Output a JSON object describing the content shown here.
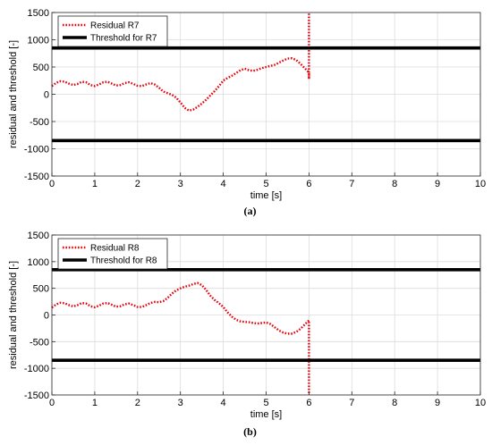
{
  "chart_data": [
    {
      "type": "line",
      "caption": "(a)",
      "xlabel": "time [s]",
      "ylabel": "residual and threshold [-]",
      "xlim": [
        0,
        10
      ],
      "ylim": [
        -1500,
        1500
      ],
      "xticks": [
        "0",
        "1",
        "2",
        "3",
        "4",
        "5",
        "6",
        "7",
        "8",
        "9",
        "10"
      ],
      "yticks": [
        "-1500",
        "-1000",
        "-500",
        "0",
        "500",
        "1000",
        "1500"
      ],
      "grid": true,
      "legend_position": "top-left",
      "series": [
        {
          "name": "Residual R7",
          "style": "dotted",
          "color": "#e8000b",
          "points": [
            [
              0,
              150
            ],
            [
              0.1,
              210
            ],
            [
              0.2,
              240
            ],
            [
              0.3,
              230
            ],
            [
              0.4,
              195
            ],
            [
              0.5,
              170
            ],
            [
              0.6,
              190
            ],
            [
              0.7,
              230
            ],
            [
              0.8,
              220
            ],
            [
              0.9,
              170
            ],
            [
              1.0,
              150
            ],
            [
              1.1,
              180
            ],
            [
              1.2,
              220
            ],
            [
              1.3,
              230
            ],
            [
              1.4,
              195
            ],
            [
              1.5,
              160
            ],
            [
              1.6,
              170
            ],
            [
              1.7,
              205
            ],
            [
              1.8,
              220
            ],
            [
              1.9,
              190
            ],
            [
              2.0,
              155
            ],
            [
              2.1,
              150
            ],
            [
              2.2,
              180
            ],
            [
              2.3,
              205
            ],
            [
              2.4,
              180
            ],
            [
              2.5,
              120
            ],
            [
              2.6,
              50
            ],
            [
              2.7,
              20
            ],
            [
              2.8,
              -10
            ],
            [
              2.9,
              -60
            ],
            [
              3.0,
              -150
            ],
            [
              3.1,
              -250
            ],
            [
              3.2,
              -300
            ],
            [
              3.3,
              -280
            ],
            [
              3.4,
              -230
            ],
            [
              3.5,
              -170
            ],
            [
              3.6,
              -100
            ],
            [
              3.7,
              -20
            ],
            [
              3.8,
              60
            ],
            [
              3.9,
              150
            ],
            [
              4.0,
              250
            ],
            [
              4.1,
              300
            ],
            [
              4.2,
              340
            ],
            [
              4.3,
              390
            ],
            [
              4.4,
              440
            ],
            [
              4.5,
              470
            ],
            [
              4.6,
              440
            ],
            [
              4.7,
              430
            ],
            [
              4.8,
              450
            ],
            [
              4.9,
              480
            ],
            [
              5.0,
              500
            ],
            [
              5.1,
              520
            ],
            [
              5.2,
              540
            ],
            [
              5.3,
              580
            ],
            [
              5.4,
              620
            ],
            [
              5.5,
              655
            ],
            [
              5.6,
              660
            ],
            [
              5.7,
              630
            ],
            [
              5.8,
              560
            ],
            [
              5.9,
              480
            ],
            [
              6.0,
              400
            ],
            [
              6.0,
              280
            ],
            [
              6.0,
              1500
            ]
          ]
        },
        {
          "name": "Threshold for R7",
          "style": "solid-thick",
          "color": "#000000",
          "points": [
            [
              0,
              850
            ],
            [
              10,
              850
            ]
          ]
        },
        {
          "name": "",
          "style": "solid-thick",
          "color": "#000000",
          "points": [
            [
              0,
              -850
            ],
            [
              10,
              -850
            ]
          ]
        }
      ]
    },
    {
      "type": "line",
      "caption": "(b)",
      "xlabel": "time [s]",
      "ylabel": "residual and threshold [-]",
      "xlim": [
        0,
        10
      ],
      "ylim": [
        -1500,
        1500
      ],
      "xticks": [
        "0",
        "1",
        "2",
        "3",
        "4",
        "5",
        "6",
        "7",
        "8",
        "9",
        "10"
      ],
      "yticks": [
        "-1500",
        "-1000",
        "-500",
        "0",
        "500",
        "1000",
        "1500"
      ],
      "grid": true,
      "legend_position": "top-left",
      "series": [
        {
          "name": "Residual R8",
          "style": "dotted",
          "color": "#e8000b",
          "points": [
            [
              0,
              140
            ],
            [
              0.1,
              200
            ],
            [
              0.2,
              230
            ],
            [
              0.3,
              220
            ],
            [
              0.4,
              185
            ],
            [
              0.5,
              160
            ],
            [
              0.6,
              185
            ],
            [
              0.7,
              225
            ],
            [
              0.8,
              215
            ],
            [
              0.9,
              165
            ],
            [
              1.0,
              145
            ],
            [
              1.1,
              175
            ],
            [
              1.2,
              215
            ],
            [
              1.3,
              225
            ],
            [
              1.4,
              190
            ],
            [
              1.5,
              155
            ],
            [
              1.6,
              165
            ],
            [
              1.7,
              200
            ],
            [
              1.8,
              215
            ],
            [
              1.9,
              185
            ],
            [
              2.0,
              150
            ],
            [
              2.1,
              150
            ],
            [
              2.2,
              185
            ],
            [
              2.3,
              225
            ],
            [
              2.4,
              245
            ],
            [
              2.5,
              240
            ],
            [
              2.6,
              260
            ],
            [
              2.7,
              320
            ],
            [
              2.8,
              400
            ],
            [
              2.9,
              460
            ],
            [
              3.0,
              500
            ],
            [
              3.1,
              530
            ],
            [
              3.2,
              550
            ],
            [
              3.3,
              580
            ],
            [
              3.4,
              600
            ],
            [
              3.5,
              560
            ],
            [
              3.6,
              470
            ],
            [
              3.7,
              360
            ],
            [
              3.8,
              280
            ],
            [
              3.9,
              220
            ],
            [
              4.0,
              150
            ],
            [
              4.1,
              50
            ],
            [
              4.2,
              -30
            ],
            [
              4.3,
              -90
            ],
            [
              4.4,
              -120
            ],
            [
              4.5,
              -130
            ],
            [
              4.6,
              -135
            ],
            [
              4.7,
              -150
            ],
            [
              4.8,
              -160
            ],
            [
              4.9,
              -150
            ],
            [
              5.0,
              -140
            ],
            [
              5.1,
              -170
            ],
            [
              5.2,
              -230
            ],
            [
              5.3,
              -290
            ],
            [
              5.4,
              -330
            ],
            [
              5.5,
              -350
            ],
            [
              5.6,
              -350
            ],
            [
              5.7,
              -320
            ],
            [
              5.8,
              -260
            ],
            [
              5.9,
              -180
            ],
            [
              6.0,
              -100
            ],
            [
              6.0,
              -1500
            ]
          ]
        },
        {
          "name": "Threshold for R8",
          "style": "solid-thick",
          "color": "#000000",
          "points": [
            [
              0,
              850
            ],
            [
              10,
              850
            ]
          ]
        },
        {
          "name": "",
          "style": "solid-thick",
          "color": "#000000",
          "points": [
            [
              0,
              -850
            ],
            [
              10,
              -850
            ]
          ]
        }
      ]
    }
  ]
}
